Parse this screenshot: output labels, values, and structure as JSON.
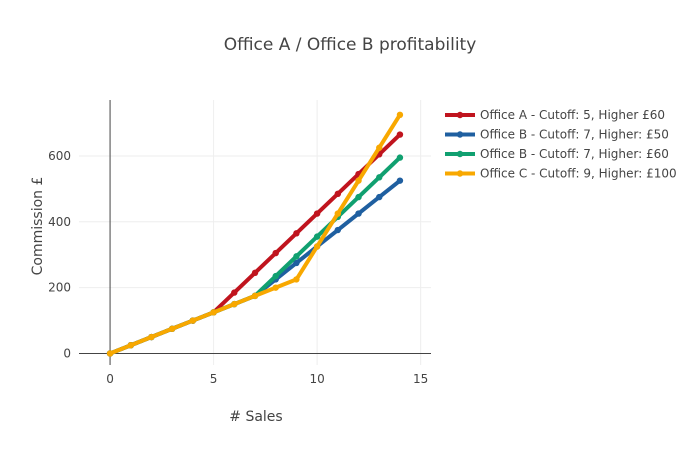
{
  "chart_data": {
    "type": "line",
    "title": "Office A / Office B profitability",
    "xlabel": "# Sales",
    "ylabel": "Commission £",
    "xlim": [
      -1.5,
      15.5
    ],
    "ylim": [
      -35,
      770
    ],
    "x_ticks": [
      0,
      5,
      10,
      15
    ],
    "y_ticks": [
      0,
      200,
      400,
      600
    ],
    "grid": true,
    "legend_position": "top-right",
    "x": [
      0,
      1,
      2,
      3,
      4,
      5,
      6,
      7,
      8,
      9,
      10,
      11,
      12,
      13,
      14
    ],
    "series": [
      {
        "name": "Office A - Cutoff: 5, Higher £60",
        "color": "#c0141e",
        "values": [
          0,
          25,
          50,
          75,
          100,
          125,
          185,
          245,
          305,
          365,
          425,
          485,
          545,
          605,
          665
        ]
      },
      {
        "name": "Office B - Cutoff: 7, Higher: £50",
        "color": "#1f5fa0",
        "values": [
          0,
          25,
          50,
          75,
          100,
          125,
          150,
          175,
          225,
          275,
          325,
          375,
          425,
          475,
          525
        ]
      },
      {
        "name": "Office B - Cutoff: 7, Higher: £60",
        "color": "#10a070",
        "values": [
          0,
          25,
          50,
          75,
          100,
          125,
          150,
          175,
          235,
          295,
          355,
          415,
          475,
          535,
          595
        ]
      },
      {
        "name": "Office C - Cutoff: 9, Higher: £100",
        "color": "#f8a800",
        "values": [
          0,
          25,
          50,
          75,
          100,
          125,
          150,
          175,
          200,
          225,
          325,
          425,
          525,
          625,
          725
        ]
      }
    ]
  }
}
